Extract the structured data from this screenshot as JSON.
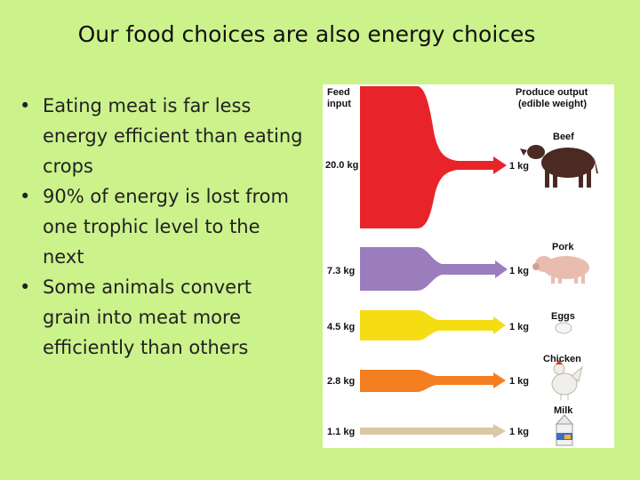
{
  "slide": {
    "title": "Our food choices are also energy choices",
    "bullets": [
      "Eating meat is far less energy efficient than eating crops",
      "90% of energy is lost from one trophic level to the next",
      "Some animals convert grain into meat more efficiently than others"
    ]
  },
  "diagram": {
    "header_left_line1": "Feed",
    "header_left_line2": "input",
    "header_right_line1": "Produce output",
    "header_right_line2": "(edible weight)",
    "rows": [
      {
        "product": "Beef",
        "input": "20.0 kg",
        "output": "1 kg",
        "color": "#e8242a"
      },
      {
        "product": "Pork",
        "input": "7.3 kg",
        "output": "1 kg",
        "color": "#9b7dbd"
      },
      {
        "product": "Eggs",
        "input": "4.5 kg",
        "output": "1  kg",
        "color": "#f6dc13"
      },
      {
        "product": "Chicken",
        "input": "2.8 kg",
        "output": "1  kg",
        "color": "#f47f20"
      },
      {
        "product": "Milk",
        "input": "1.1 kg",
        "output": "1  kg",
        "color": "#d9c8a4"
      }
    ]
  }
}
